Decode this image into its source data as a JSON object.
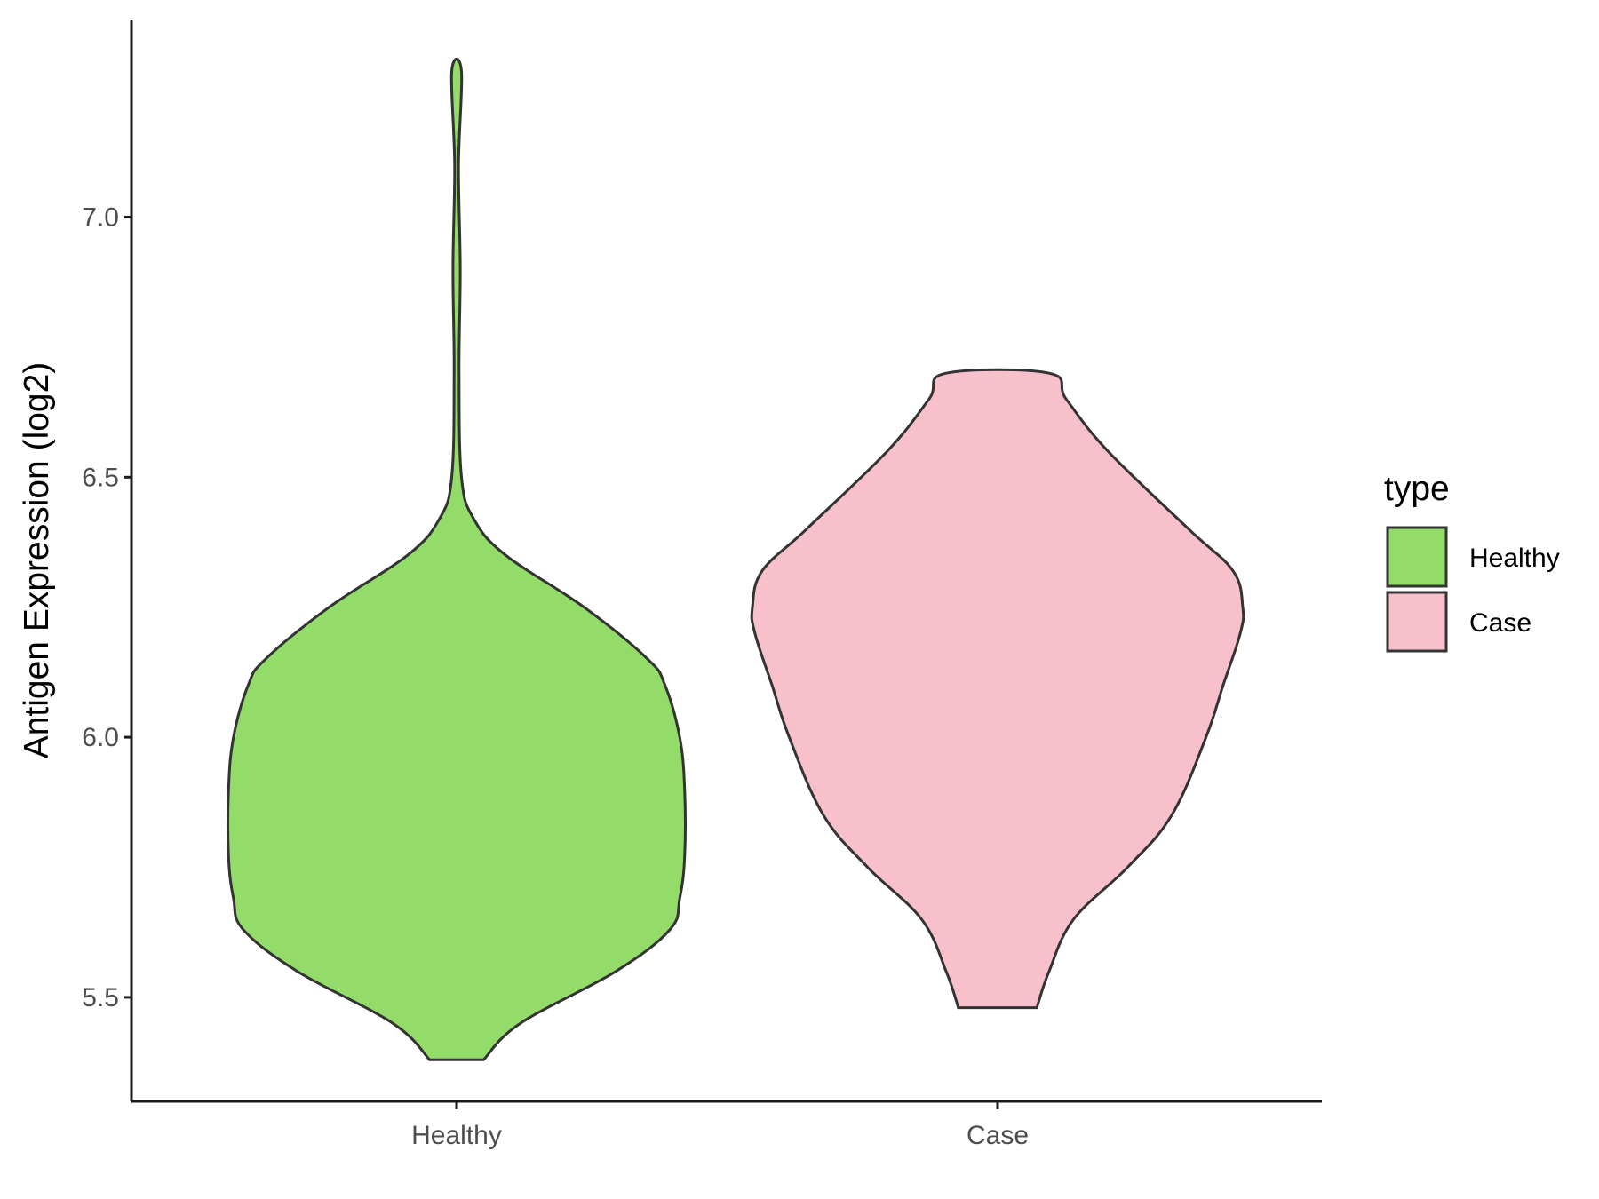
{
  "chart_data": {
    "type": "violin",
    "ylabel": "Antigen Expression (log2)",
    "xlabel": "",
    "categories": [
      "Healthy",
      "Case"
    ],
    "y_ticks": [
      "5.5",
      "6.0",
      "6.5",
      "7.0"
    ],
    "ylim": [
      5.3,
      7.38
    ],
    "legend": {
      "title": "type",
      "position": "right",
      "entries": [
        {
          "label": "Healthy",
          "color": "#93dc6a"
        },
        {
          "label": "Case",
          "color": "#f8c0cb"
        }
      ]
    },
    "series": [
      {
        "name": "Healthy",
        "color": "#93dc6a",
        "density": [
          {
            "y": 5.38,
            "w": 0.11
          },
          {
            "y": 5.45,
            "w": 0.26
          },
          {
            "y": 5.55,
            "w": 0.65
          },
          {
            "y": 5.63,
            "w": 0.87
          },
          {
            "y": 5.69,
            "w": 0.91
          },
          {
            "y": 5.77,
            "w": 0.93
          },
          {
            "y": 5.9,
            "w": 0.93
          },
          {
            "y": 6.0,
            "w": 0.91
          },
          {
            "y": 6.1,
            "w": 0.85
          },
          {
            "y": 6.15,
            "w": 0.78
          },
          {
            "y": 6.25,
            "w": 0.52
          },
          {
            "y": 6.35,
            "w": 0.2
          },
          {
            "y": 6.42,
            "w": 0.07
          },
          {
            "y": 6.5,
            "w": 0.02
          },
          {
            "y": 6.7,
            "w": 0.01
          },
          {
            "y": 6.9,
            "w": 0.015
          },
          {
            "y": 7.1,
            "w": 0.008
          },
          {
            "y": 7.28,
            "w": 0.02
          }
        ]
      },
      {
        "name": "Case",
        "color": "#f8c0cb",
        "density": [
          {
            "y": 5.48,
            "w": 0.16
          },
          {
            "y": 5.55,
            "w": 0.21
          },
          {
            "y": 5.65,
            "w": 0.31
          },
          {
            "y": 5.75,
            "w": 0.53
          },
          {
            "y": 5.85,
            "w": 0.71
          },
          {
            "y": 6.0,
            "w": 0.85
          },
          {
            "y": 6.1,
            "w": 0.92
          },
          {
            "y": 6.2,
            "w": 0.99
          },
          {
            "y": 6.25,
            "w": 1.0
          },
          {
            "y": 6.32,
            "w": 0.96
          },
          {
            "y": 6.4,
            "w": 0.78
          },
          {
            "y": 6.55,
            "w": 0.45
          },
          {
            "y": 6.65,
            "w": 0.28
          },
          {
            "y": 6.7,
            "w": 0.21
          }
        ]
      }
    ]
  }
}
